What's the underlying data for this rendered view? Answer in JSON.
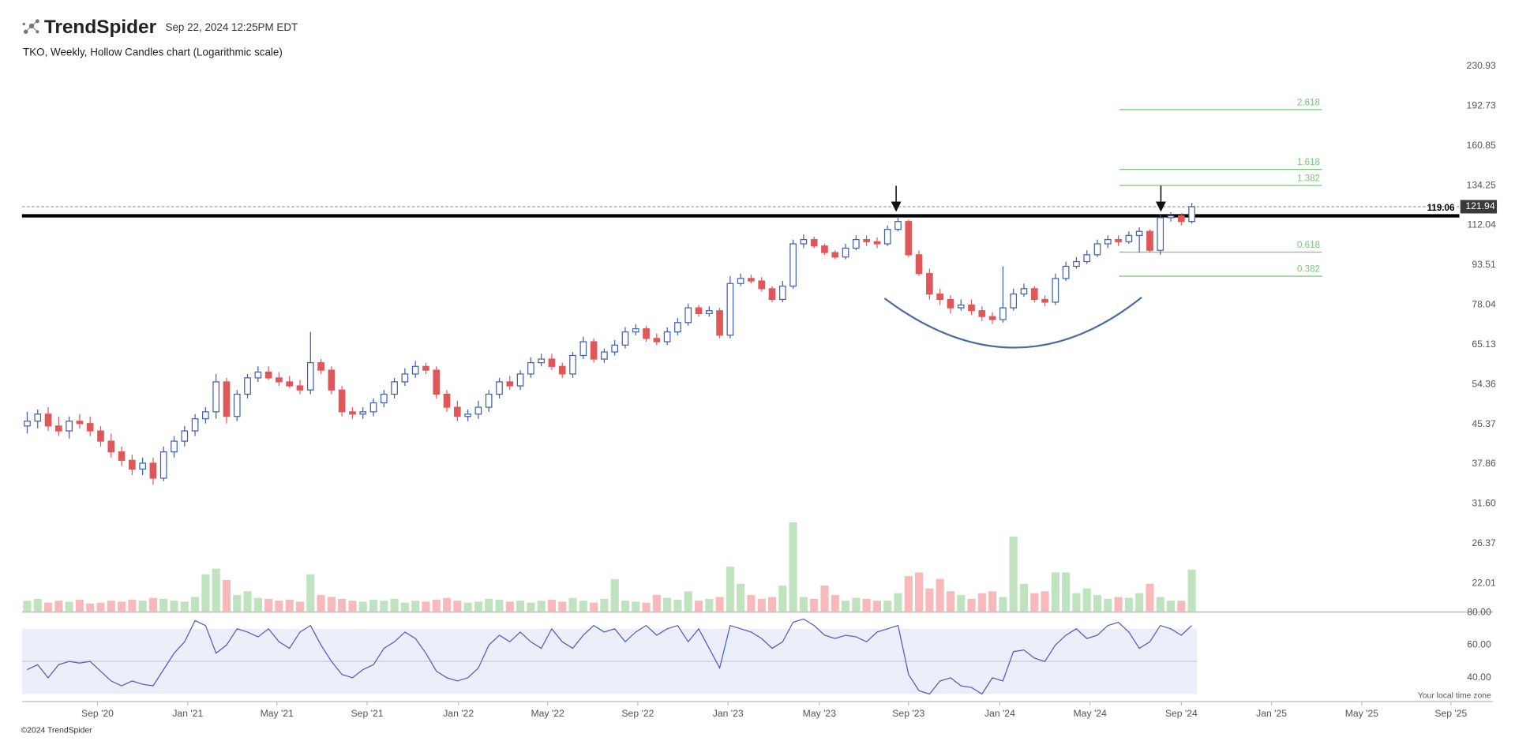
{
  "header": {
    "brand": "TrendSpider",
    "timestamp": "Sep 22, 2024 12:25PM EDT",
    "footer": "©2024 TrendSpider",
    "timezone_note": "Your local time zone"
  },
  "chart_data": {
    "type": "candlestick",
    "title": "TKO, Weekly, Hollow Candles chart (Logarithmic scale)",
    "log_scale": true,
    "up_color": "#3f5fb5",
    "down_color": "#e0575a",
    "open": [
      45,
      46,
      47.5,
      45,
      44,
      46,
      45.5,
      44,
      42,
      40,
      38.5,
      37,
      38,
      35.5,
      40,
      42,
      44,
      46.5,
      48,
      55,
      47,
      52,
      56,
      57.5,
      56,
      55,
      54,
      53,
      60,
      58,
      53,
      48,
      47.5,
      48,
      50,
      52,
      55,
      57,
      59,
      58,
      52,
      49,
      47,
      47.5,
      49,
      52,
      55,
      54,
      57,
      60,
      61,
      59,
      57,
      62,
      66,
      61,
      63,
      65,
      69,
      70,
      67,
      66,
      69,
      72,
      77,
      75,
      76,
      68,
      86,
      88,
      87,
      84,
      80,
      85,
      103,
      105,
      102,
      99,
      97,
      101,
      105,
      104,
      103,
      110,
      114,
      98,
      90,
      82,
      80,
      77,
      78,
      76,
      74,
      73,
      77,
      82,
      84,
      80,
      79,
      88,
      93,
      95,
      98,
      103,
      105,
      104,
      107,
      109,
      100,
      116,
      117,
      114
    ],
    "high": [
      48,
      48.5,
      49,
      47,
      47,
      47.5,
      47,
      45,
      43.5,
      41,
      39.5,
      39,
      39,
      41,
      43,
      45,
      47.5,
      49,
      57,
      56,
      53,
      57,
      59,
      59,
      57.5,
      56.5,
      55.5,
      69,
      61,
      59,
      54,
      49,
      49,
      51,
      53,
      56,
      58.5,
      60.5,
      60,
      59,
      53,
      50.5,
      48.5,
      50.5,
      53,
      56,
      56.5,
      58,
      61.5,
      62.5,
      62.5,
      60,
      63,
      67.5,
      67,
      64,
      66.5,
      70.5,
      71.5,
      71,
      68.5,
      70.5,
      73.5,
      78.5,
      78,
      77.5,
      77,
      89,
      90,
      89.5,
      88.5,
      85,
      87,
      105,
      107.5,
      106.5,
      103,
      100,
      103,
      107,
      107,
      106,
      112,
      116,
      115,
      100,
      92,
      84,
      81.5,
      80,
      80,
      77.5,
      75.5,
      93,
      84,
      86,
      85,
      81.5,
      90,
      95,
      97,
      100,
      105,
      107,
      107,
      109,
      111,
      110,
      118,
      119,
      118.5,
      124
    ],
    "low": [
      43.5,
      44.5,
      44,
      43,
      42.5,
      44.5,
      43,
      41,
      39,
      37.5,
      36,
      36,
      34.5,
      35,
      39,
      41,
      43,
      45.5,
      46.5,
      45.5,
      46,
      51,
      55,
      55.5,
      54,
      53.5,
      52,
      52,
      57,
      52,
      47,
      46.5,
      46.5,
      47,
      49,
      51,
      54,
      56,
      57,
      51,
      48,
      46,
      46,
      46.5,
      48,
      51,
      53,
      53,
      56,
      59,
      58,
      56,
      56,
      61,
      60,
      60,
      62,
      64,
      68,
      66,
      65,
      65,
      68,
      71,
      74,
      74,
      67,
      67,
      85,
      86,
      83,
      79,
      79,
      84,
      101,
      101,
      98,
      96,
      96,
      100,
      102,
      101,
      102,
      109,
      97,
      89,
      80,
      78,
      75,
      76,
      74.5,
      72.5,
      71.5,
      72,
      76,
      81,
      79,
      77.5,
      78,
      87,
      92,
      94,
      97,
      101,
      102,
      103,
      99,
      99,
      98,
      114,
      112,
      113
    ],
    "close": [
      46,
      47.5,
      45,
      44,
      46,
      45.5,
      44,
      42,
      40,
      38.5,
      37,
      38,
      35.5,
      40,
      42,
      44,
      46.5,
      48,
      55,
      47,
      52,
      56,
      57.5,
      56,
      55,
      54,
      53,
      60,
      58,
      53,
      48,
      47.5,
      48,
      50,
      52,
      55,
      57,
      59,
      58,
      52,
      49,
      47,
      47.5,
      49,
      52,
      55,
      54,
      57,
      60,
      61,
      59,
      57,
      62,
      66,
      61,
      63,
      65,
      69,
      70,
      67,
      66,
      69,
      72,
      77,
      75,
      76,
      68,
      86,
      88,
      87,
      84,
      80,
      85,
      103,
      105,
      102,
      99,
      97,
      101,
      105,
      104,
      103,
      110,
      114,
      98,
      90,
      82,
      80,
      77,
      78,
      76,
      74,
      73,
      77,
      82,
      84,
      80,
      79,
      88,
      93,
      95,
      98,
      103,
      105,
      104,
      107,
      109,
      100,
      116,
      117,
      114,
      121.94
    ],
    "xlim": [
      -0.5,
      136.5
    ],
    "xticks": [
      {
        "value": 6.7,
        "label": "Sep '20"
      },
      {
        "value": 15.3,
        "label": "Jan '21"
      },
      {
        "value": 23.8,
        "label": "May '21"
      },
      {
        "value": 32.4,
        "label": "Sep '21"
      },
      {
        "value": 41.1,
        "label": "Jan '22"
      },
      {
        "value": 49.6,
        "label": "May '22"
      },
      {
        "value": 58.2,
        "label": "Sep '22"
      },
      {
        "value": 66.8,
        "label": "Jan '23"
      },
      {
        "value": 75.5,
        "label": "May '23"
      },
      {
        "value": 84.0,
        "label": "Sep '23"
      },
      {
        "value": 92.7,
        "label": "Jan '24"
      },
      {
        "value": 101.3,
        "label": "May '24"
      },
      {
        "value": 110.0,
        "label": "Sep '24"
      },
      {
        "value": 118.6,
        "label": "Jan '25"
      },
      {
        "value": 127.2,
        "label": "May '25"
      },
      {
        "value": 135.7,
        "label": "Sep '25"
      }
    ],
    "ylim": [
      19.4,
      240
    ],
    "yticks": [
      230.93,
      192.73,
      160.85,
      134.25,
      112.04,
      93.51,
      78.04,
      65.13,
      54.36,
      45.37,
      37.86,
      {
        "value": 31.6,
        "label": "31.60"
      },
      26.37,
      22.01
    ],
    "last_price": 121.94,
    "level_line": 119.06,
    "fib": {
      "color": "#7cc47c",
      "levels": [
        2.618,
        1.618,
        1.382,
        0.618,
        0.382
      ],
      "prices": [
        189.6,
        144.5,
        134.3,
        99.2,
        88.9
      ],
      "x_range": [
        104.1,
        123.4
      ]
    },
    "volume": {
      "ylim": [
        0,
        100
      ],
      "up_color": "#bfe2bf",
      "down_color": "#f7b9b9",
      "values": [
        12,
        14,
        10,
        12,
        11,
        13,
        9,
        10,
        12,
        11,
        13,
        12,
        15,
        14,
        12,
        11,
        16,
        40,
        46,
        34,
        18,
        22,
        15,
        14,
        12,
        13,
        11,
        40,
        18,
        16,
        14,
        12,
        11,
        13,
        12,
        14,
        10,
        12,
        11,
        13,
        15,
        12,
        10,
        11,
        14,
        13,
        11,
        12,
        10,
        12,
        13,
        11,
        15,
        12,
        10,
        14,
        35,
        12,
        11,
        10,
        18,
        15,
        13,
        22,
        12,
        14,
        16,
        48,
        30,
        18,
        14,
        16,
        28,
        95,
        16,
        14,
        28,
        18,
        12,
        15,
        14,
        12,
        12,
        20,
        38,
        42,
        25,
        35,
        22,
        18,
        14,
        20,
        22,
        16,
        80,
        30,
        20,
        22,
        42,
        42,
        20,
        25,
        18,
        14,
        16,
        15,
        20,
        30,
        16,
        12,
        12,
        45
      ]
    },
    "rsi": {
      "color": "#4a5bc4",
      "band_color": "#eceefa",
      "ylim": [
        26,
        82
      ],
      "band": [
        30,
        70
      ],
      "midline": 50,
      "yticks": [
        {
          "value": 80,
          "label": "80.00"
        },
        {
          "value": 60,
          "label": "60.00"
        },
        {
          "value": 40,
          "label": "40.00"
        }
      ],
      "values": [
        45,
        48,
        40,
        48,
        50,
        49,
        50,
        44,
        38,
        35,
        38,
        36,
        35,
        45,
        55,
        62,
        75,
        72,
        55,
        60,
        70,
        68,
        65,
        70,
        62,
        58,
        68,
        72,
        60,
        50,
        42,
        40,
        45,
        48,
        58,
        62,
        68,
        64,
        55,
        44,
        40,
        38,
        40,
        46,
        60,
        66,
        62,
        68,
        62,
        58,
        70,
        62,
        58,
        66,
        72,
        68,
        70,
        62,
        68,
        72,
        66,
        70,
        72,
        62,
        70,
        58,
        46,
        72,
        70,
        68,
        64,
        58,
        62,
        74,
        76,
        72,
        66,
        64,
        66,
        65,
        62,
        68,
        70,
        72,
        42,
        32,
        30,
        38,
        40,
        35,
        34,
        30,
        40,
        38,
        56,
        57,
        52,
        50,
        60,
        66,
        70,
        64,
        66,
        72,
        74,
        68,
        58,
        62,
        72,
        70,
        66,
        72
      ]
    }
  }
}
